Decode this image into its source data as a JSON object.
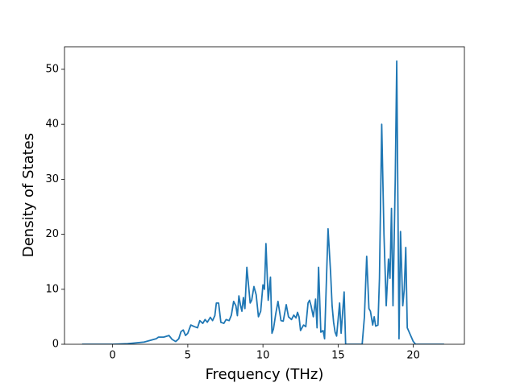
{
  "chart_data": {
    "type": "line",
    "xlabel": "Frequency (THz)",
    "ylabel": "Density of States",
    "x": [
      -2.03,
      0,
      1.0,
      2.1,
      2.9,
      3.05,
      3.4,
      3.75,
      3.95,
      4.2,
      4.4,
      4.55,
      4.7,
      4.85,
      5.0,
      5.2,
      5.45,
      5.65,
      5.8,
      6.0,
      6.15,
      6.3,
      6.5,
      6.65,
      6.8,
      6.9,
      7.05,
      7.2,
      7.4,
      7.55,
      7.75,
      7.9,
      8.05,
      8.2,
      8.3,
      8.4,
      8.5,
      8.6,
      8.7,
      8.8,
      8.93,
      9.15,
      9.25,
      9.4,
      9.55,
      9.7,
      9.85,
      10.0,
      10.1,
      10.2,
      10.35,
      10.5,
      10.6,
      10.7,
      10.85,
      11.0,
      11.2,
      11.35,
      11.55,
      11.7,
      11.9,
      12.05,
      12.2,
      12.3,
      12.4,
      12.5,
      12.7,
      12.85,
      13.0,
      13.1,
      13.2,
      13.35,
      13.5,
      13.6,
      13.7,
      13.85,
      14.0,
      14.1,
      14.33,
      14.5,
      14.6,
      14.7,
      14.8,
      14.9,
      15.1,
      15.2,
      15.4,
      15.5,
      16.6,
      16.75,
      16.9,
      17.05,
      17.15,
      17.3,
      17.4,
      17.5,
      17.65,
      17.75,
      17.9,
      18.05,
      18.2,
      18.35,
      18.45,
      18.55,
      18.65,
      18.8,
      18.9,
      19.05,
      19.15,
      19.3,
      19.4,
      19.5,
      19.6,
      20.0,
      20.15,
      22.05
    ],
    "values": [
      0,
      0,
      0.1,
      0.4,
      1.0,
      1.3,
      1.3,
      1.6,
      0.9,
      0.5,
      1.0,
      2.3,
      2.6,
      1.6,
      2.0,
      3.5,
      3.2,
      3.0,
      4.3,
      3.8,
      4.5,
      4.0,
      4.9,
      4.3,
      5.2,
      7.5,
      7.5,
      4.0,
      3.8,
      4.5,
      4.3,
      5.3,
      7.8,
      7.0,
      5.2,
      8.8,
      7.2,
      6.0,
      8.5,
      6.5,
      14,
      7.5,
      8.0,
      10.5,
      9.0,
      5.0,
      6.0,
      10.8,
      10.0,
      18.3,
      8.0,
      12.2,
      2.0,
      2.8,
      5.5,
      7.8,
      4.3,
      4.2,
      7.2,
      5.0,
      4.5,
      5.3,
      4.8,
      5.8,
      5.0,
      2.5,
      3.5,
      3.2,
      7.5,
      8.0,
      7.0,
      5.0,
      8.2,
      3.0,
      14,
      2.2,
      2.5,
      1.0,
      21,
      13,
      7,
      4,
      2.2,
      1.5,
      7.5,
      2.0,
      9.5,
      0,
      0,
      5,
      16,
      6.5,
      6.0,
      3.5,
      5.0,
      3.3,
      3.5,
      12,
      40,
      20,
      7,
      15.5,
      12,
      24.7,
      7,
      30,
      51.5,
      1,
      20.5,
      7,
      10,
      17.6,
      3,
      0.5,
      0,
      0
    ],
    "color": "#1f77b4",
    "xlim": [
      -3.2,
      23.4
    ],
    "xticks": [
      0,
      5,
      10,
      15,
      20
    ],
    "ylim": [
      0,
      54.1
    ],
    "yticks": [
      0,
      10,
      20,
      30,
      40,
      50
    ]
  }
}
